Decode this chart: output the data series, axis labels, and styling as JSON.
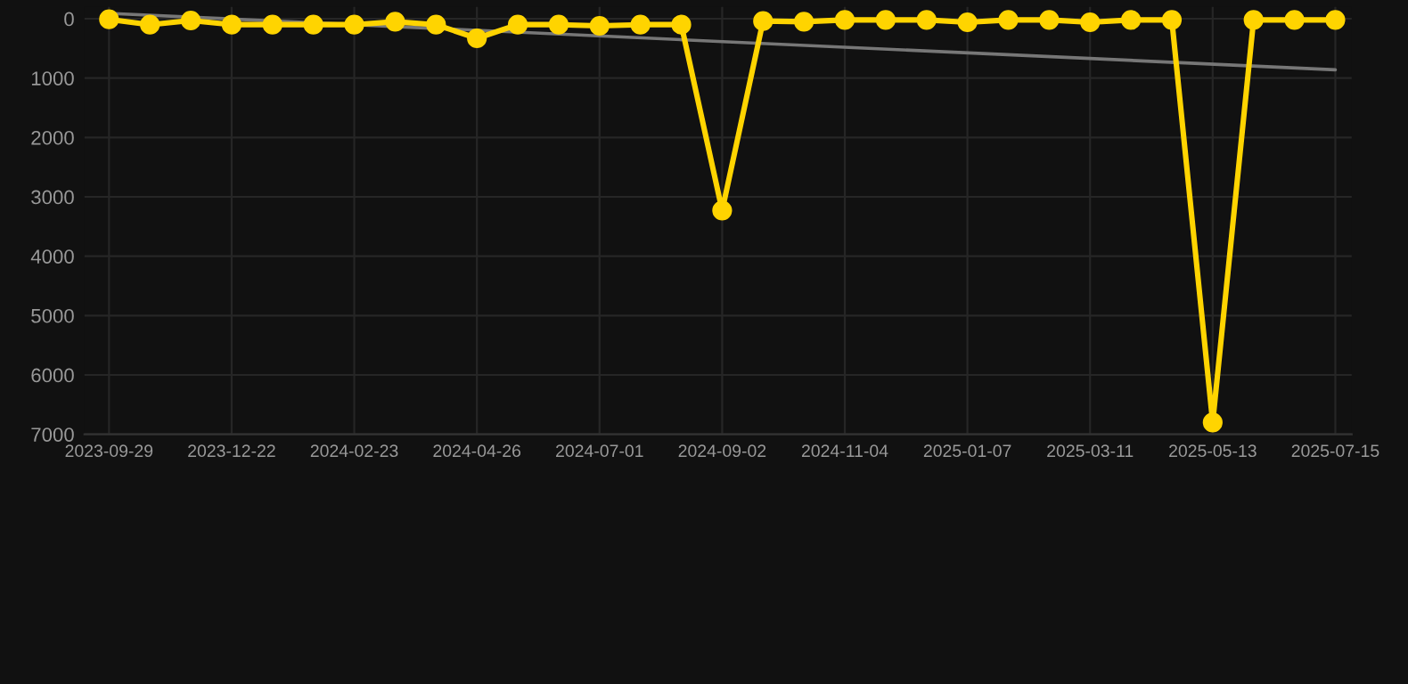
{
  "chart_data": {
    "type": "line",
    "categories": [
      "2023-09-29",
      null,
      null,
      "2023-12-22",
      null,
      null,
      "2024-02-23",
      null,
      null,
      "2024-04-26",
      null,
      null,
      "2024-07-01",
      null,
      null,
      "2024-09-02",
      null,
      null,
      "2024-11-04",
      null,
      null,
      "2025-01-07",
      null,
      null,
      "2025-03-11",
      null,
      null,
      "2025-05-13",
      null,
      null,
      "2025-07-15"
    ],
    "series": [
      {
        "color": "#ffd400",
        "marker": "circle",
        "values": [
          10,
          100,
          30,
          100,
          100,
          100,
          100,
          50,
          100,
          330,
          100,
          100,
          120,
          100,
          100,
          3230,
          40,
          50,
          20,
          20,
          20,
          60,
          20,
          20,
          60,
          20,
          20,
          6800,
          20,
          20,
          20
        ]
      },
      {
        "type": "line",
        "color": "#777777",
        "marker": "none",
        "values": [
          -90,
          null,
          null,
          null,
          null,
          null,
          null,
          null,
          null,
          null,
          null,
          null,
          null,
          null,
          null,
          null,
          null,
          null,
          null,
          null,
          null,
          null,
          null,
          null,
          null,
          null,
          null,
          null,
          null,
          null,
          860
        ]
      }
    ],
    "ylim": [
      7000,
      -200
    ],
    "yticks": [
      0,
      1000,
      2000,
      3000,
      4000,
      5000,
      6000,
      7000
    ],
    "grid": true,
    "legend": false
  }
}
